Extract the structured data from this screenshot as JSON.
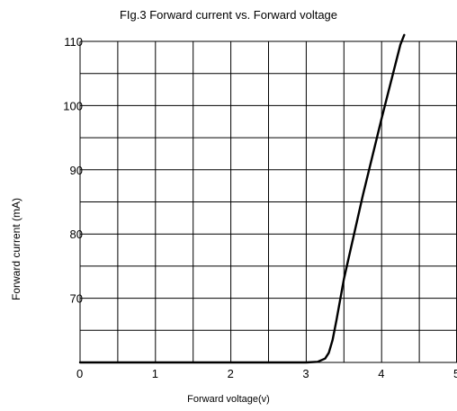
{
  "chart_data": {
    "type": "line",
    "title": "FIg.3 Forward current vs. Forward voltage",
    "xlabel": "Forward voltage(v)",
    "ylabel": "Forward current (mA)",
    "xlim": [
      0,
      5
    ],
    "ylim": [
      60,
      110
    ],
    "x_ticks": [
      0,
      1,
      2,
      3,
      4,
      5
    ],
    "x_tick_labels": [
      "0",
      "1",
      "2",
      "3",
      "4",
      "5"
    ],
    "y_ticks": [
      70,
      80,
      90,
      100,
      110
    ],
    "y_tick_labels": [
      "70",
      "80",
      "90",
      "100",
      "110"
    ],
    "grid": true,
    "grid_x_step": 0.5,
    "grid_y_step": 5,
    "line_color": "#000000",
    "series": [
      {
        "x": [
          0,
          1,
          2,
          3.0,
          3.15,
          3.25,
          3.3,
          3.35,
          3.4,
          3.5,
          3.75,
          4.0,
          4.25,
          4.3
        ],
        "y": [
          60,
          60,
          60,
          60,
          60.1,
          60.6,
          61.5,
          63.5,
          66.5,
          73,
          86,
          98,
          109.5,
          111
        ]
      }
    ]
  }
}
